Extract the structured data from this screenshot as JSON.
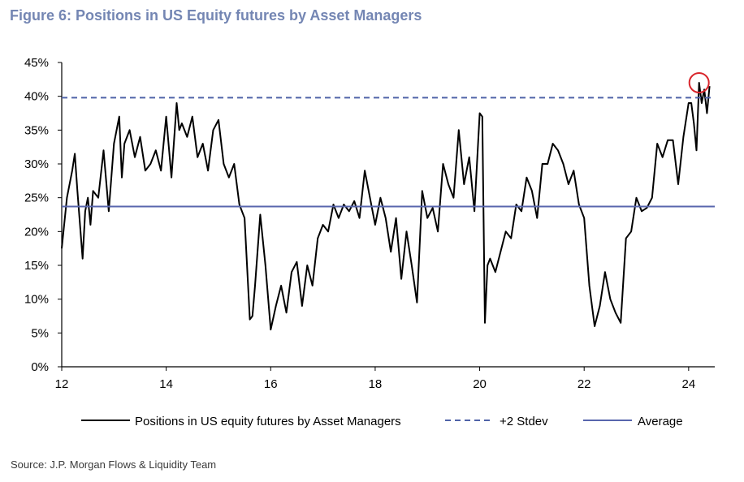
{
  "title": "Figure 6: Positions in US Equity futures by Asset Managers",
  "source": "Source: J.P. Morgan Flows & Liquidity Team",
  "chart_data": {
    "type": "line",
    "xlim": [
      12,
      24.5
    ],
    "ylim": [
      0,
      45
    ],
    "x_ticks": [
      12,
      14,
      16,
      18,
      20,
      22,
      24
    ],
    "x_tick_labels": [
      "12",
      "14",
      "16",
      "18",
      "20",
      "22",
      "24"
    ],
    "y_ticks": [
      0,
      5,
      10,
      15,
      20,
      25,
      30,
      35,
      40,
      45
    ],
    "y_tick_labels": [
      "0%",
      "5%",
      "10%",
      "15%",
      "20%",
      "25%",
      "30%",
      "35%",
      "40%",
      "45%"
    ],
    "grid": false,
    "legend_position": "bottom",
    "colors": {
      "series": "#000000",
      "stdev": "#4f63a8",
      "average": "#5866ad",
      "highlight": "#d9262c"
    },
    "series": [
      {
        "name": "Positions in US equity futures by Asset Managers",
        "x": [
          12.0,
          12.1,
          12.2,
          12.25,
          12.3,
          12.4,
          12.45,
          12.5,
          12.55,
          12.6,
          12.7,
          12.8,
          12.9,
          13.0,
          13.1,
          13.15,
          13.2,
          13.3,
          13.4,
          13.5,
          13.6,
          13.7,
          13.8,
          13.9,
          14.0,
          14.1,
          14.2,
          14.25,
          14.3,
          14.4,
          14.5,
          14.6,
          14.7,
          14.8,
          14.9,
          15.0,
          15.1,
          15.2,
          15.3,
          15.4,
          15.5,
          15.6,
          15.65,
          15.7,
          15.8,
          15.9,
          16.0,
          16.1,
          16.2,
          16.3,
          16.4,
          16.5,
          16.6,
          16.7,
          16.8,
          16.9,
          17.0,
          17.1,
          17.2,
          17.3,
          17.4,
          17.5,
          17.6,
          17.7,
          17.8,
          17.9,
          18.0,
          18.1,
          18.2,
          18.3,
          18.4,
          18.5,
          18.6,
          18.7,
          18.8,
          18.9,
          19.0,
          19.1,
          19.2,
          19.3,
          19.4,
          19.5,
          19.6,
          19.7,
          19.8,
          19.9,
          20.0,
          20.05,
          20.1,
          20.15,
          20.2,
          20.3,
          20.4,
          20.5,
          20.6,
          20.7,
          20.8,
          20.9,
          21.0,
          21.1,
          21.2,
          21.3,
          21.4,
          21.5,
          21.6,
          21.7,
          21.8,
          21.9,
          22.0,
          22.1,
          22.2,
          22.3,
          22.4,
          22.5,
          22.6,
          22.7,
          22.8,
          22.9,
          23.0,
          23.1,
          23.2,
          23.3,
          23.4,
          23.5,
          23.6,
          23.7,
          23.8,
          23.9,
          24.0,
          24.05,
          24.1,
          24.15,
          24.2,
          24.25,
          24.3,
          24.35,
          24.4
        ],
        "values": [
          17.5,
          25.0,
          29.0,
          31.5,
          26.0,
          16.0,
          23.0,
          25.0,
          21.0,
          26.0,
          25.0,
          32.0,
          23.0,
          33.0,
          37.0,
          28.0,
          33.0,
          35.0,
          31.0,
          34.0,
          29.0,
          30.0,
          32.0,
          29.0,
          37.0,
          28.0,
          39.0,
          35.0,
          36.0,
          34.0,
          37.0,
          31.0,
          33.0,
          29.0,
          35.0,
          36.5,
          30.0,
          28.0,
          30.0,
          24.0,
          22.0,
          7.0,
          7.5,
          12.0,
          22.5,
          15.0,
          5.5,
          9.0,
          12.0,
          8.0,
          14.0,
          15.5,
          9.0,
          15.0,
          12.0,
          19.0,
          21.0,
          20.0,
          24.0,
          22.0,
          24.0,
          23.0,
          24.5,
          22.0,
          29.0,
          25.0,
          21.0,
          25.0,
          22.0,
          17.0,
          22.0,
          13.0,
          20.0,
          15.0,
          9.5,
          26.0,
          22.0,
          23.5,
          20.0,
          30.0,
          27.0,
          25.0,
          35.0,
          27.0,
          31.0,
          23.0,
          37.5,
          37.0,
          6.5,
          15.0,
          16.0,
          14.0,
          17.0,
          20.0,
          19.0,
          24.0,
          23.0,
          28.0,
          26.0,
          22.0,
          30.0,
          30.0,
          33.0,
          32.0,
          30.0,
          27.0,
          29.0,
          24.0,
          22.0,
          12.0,
          6.0,
          9.0,
          14.0,
          10.0,
          8.0,
          6.5,
          19.0,
          20.0,
          25.0,
          23.0,
          23.5,
          25.0,
          33.0,
          31.0,
          33.5,
          33.5,
          27.0,
          34.0,
          39.0,
          39.0,
          36.0,
          32.0,
          42.0,
          39.0,
          41.0,
          37.5,
          41.5
        ]
      },
      {
        "name": "+2 Stdev",
        "value": 39.8
      },
      {
        "name": "Average",
        "value": 23.7
      }
    ],
    "annotations": [
      {
        "type": "circle",
        "x": 24.2,
        "y": 42.0
      }
    ]
  }
}
